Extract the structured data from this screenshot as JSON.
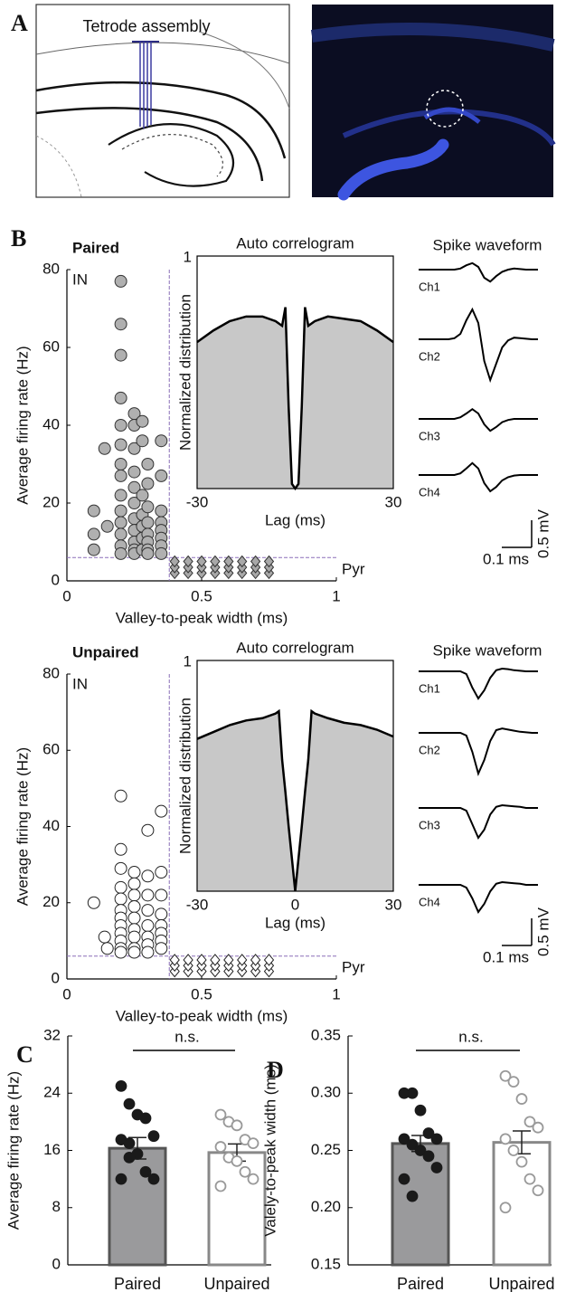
{
  "panel_a": {
    "label": "A",
    "annotation": "Tetrode assembly"
  },
  "chart_data": [
    {
      "type": "scatter",
      "panel": "B",
      "title": "Paired",
      "xlabel": "Valley-to-peak width (ms)",
      "ylabel": "Average firing rate (Hz)",
      "annotations": [
        "IN",
        "Pyr"
      ],
      "xlim": [
        0,
        1
      ],
      "xticks": [
        0,
        0.5,
        1
      ],
      "ylim": [
        0,
        80
      ],
      "yticks": [
        0,
        20,
        40,
        60,
        80
      ],
      "threshold_x": 0.38,
      "threshold_y": 6,
      "threshold_color": "#8a6fb8",
      "series": [
        {
          "marker": "circle",
          "color": "#b0b0b0",
          "edgecolor": "#333333",
          "x": [
            0.1,
            0.1,
            0.1,
            0.14,
            0.15,
            0.2,
            0.2,
            0.2,
            0.2,
            0.2,
            0.2,
            0.2,
            0.2,
            0.2,
            0.2,
            0.2,
            0.2,
            0.2,
            0.2,
            0.25,
            0.25,
            0.25,
            0.25,
            0.25,
            0.25,
            0.25,
            0.25,
            0.25,
            0.25,
            0.25,
            0.28,
            0.28,
            0.28,
            0.28,
            0.28,
            0.28,
            0.28,
            0.3,
            0.3,
            0.3,
            0.3,
            0.3,
            0.3,
            0.3,
            0.3,
            0.35,
            0.35,
            0.35,
            0.35,
            0.35,
            0.35,
            0.35,
            0.35
          ],
          "values": [
            18,
            12,
            8,
            34,
            14,
            77,
            66,
            58,
            47,
            40,
            35,
            30,
            27,
            22,
            18,
            15,
            12,
            9,
            7,
            43,
            40,
            34,
            28,
            24,
            20,
            16,
            13,
            10,
            8,
            7,
            41,
            36,
            22,
            17,
            14,
            11,
            8,
            30,
            25,
            19,
            15,
            12,
            10,
            8,
            7,
            36,
            27,
            18,
            15,
            13,
            11,
            9,
            7
          ]
        },
        {
          "marker": "diamond",
          "color": "#a8a8a8",
          "edgecolor": "#333333",
          "x": [
            0.4,
            0.4,
            0.4,
            0.45,
            0.45,
            0.45,
            0.5,
            0.5,
            0.5,
            0.55,
            0.55,
            0.55,
            0.6,
            0.6,
            0.6,
            0.65,
            0.65,
            0.65,
            0.7,
            0.7,
            0.7,
            0.75,
            0.75,
            0.75
          ],
          "values": [
            2,
            3.5,
            5,
            2,
            3.5,
            5,
            2,
            3.5,
            5,
            2,
            3.5,
            5,
            2,
            3.5,
            5,
            2,
            3.5,
            5,
            2,
            3.5,
            5,
            2,
            3.5,
            5
          ]
        }
      ]
    },
    {
      "type": "area",
      "title": "Auto correlogram",
      "xlabel": "Lag (ms)",
      "ylabel": "Normalized distribution",
      "xlim": [
        -30,
        30
      ],
      "xticks": [
        -30,
        30
      ],
      "ylim": [
        0,
        1
      ],
      "yticks": [
        1
      ],
      "color": "#c8c8c8",
      "x": [
        -30,
        -25,
        -20,
        -15,
        -10,
        -6,
        -4,
        -3,
        -2,
        -1,
        0,
        1,
        2,
        3,
        4,
        6,
        10,
        15,
        20,
        25,
        30
      ],
      "values": [
        0.63,
        0.68,
        0.72,
        0.74,
        0.74,
        0.72,
        0.7,
        0.78,
        0.35,
        0.02,
        0,
        0.02,
        0.35,
        0.78,
        0.7,
        0.72,
        0.74,
        0.73,
        0.72,
        0.68,
        0.63
      ]
    },
    {
      "type": "waveform",
      "title": "Spike waveform",
      "y_scale": {
        "value": 0.5,
        "label": "0.5 mV"
      },
      "x_scale": {
        "value": 0.1,
        "label": "0.1 ms"
      },
      "x": [
        0,
        0.02,
        0.04,
        0.06,
        0.08,
        0.1,
        0.12,
        0.14,
        0.16,
        0.18,
        0.2,
        0.22,
        0.24,
        0.26,
        0.28,
        0.3,
        0.32,
        0.34,
        0.36,
        0.38,
        0.4
      ],
      "series": [
        {
          "name": "Ch1",
          "values": [
            0,
            0,
            0,
            0,
            0,
            0,
            0,
            0.02,
            0.08,
            0.12,
            0.05,
            -0.15,
            -0.22,
            -0.12,
            -0.04,
            0,
            0.02,
            0.01,
            0,
            0,
            0
          ]
        },
        {
          "name": "Ch2",
          "values": [
            0,
            0,
            0,
            0,
            0,
            0,
            0.02,
            0.1,
            0.35,
            0.55,
            0.3,
            -0.4,
            -0.75,
            -0.45,
            -0.15,
            -0.02,
            0.03,
            0.02,
            0.01,
            0,
            0
          ]
        },
        {
          "name": "Ch3",
          "values": [
            0,
            0,
            0,
            0,
            0,
            0,
            0,
            0.03,
            0.1,
            0.18,
            0.1,
            -0.1,
            -0.22,
            -0.15,
            -0.06,
            -0.02,
            0,
            0,
            0,
            0,
            0
          ]
        },
        {
          "name": "Ch4",
          "values": [
            0,
            0,
            0,
            0,
            0,
            0,
            0,
            0.03,
            0.12,
            0.22,
            0.12,
            -0.15,
            -0.3,
            -0.22,
            -0.1,
            -0.04,
            -0.01,
            0,
            0,
            0,
            0
          ]
        }
      ]
    },
    {
      "type": "scatter",
      "title": "Unpaired",
      "xlabel": "Valley-to-peak width (ms)",
      "ylabel": "Average firing rate (Hz)",
      "annotations": [
        "IN",
        "Pyr"
      ],
      "xlim": [
        0,
        1
      ],
      "xticks": [
        0,
        0.5,
        1
      ],
      "ylim": [
        0,
        80
      ],
      "yticks": [
        0,
        20,
        40,
        60,
        80
      ],
      "threshold_x": 0.38,
      "threshold_y": 6,
      "threshold_color": "#8a6fb8",
      "series": [
        {
          "marker": "circle",
          "color": "#ffffff",
          "edgecolor": "#222222",
          "x": [
            0.1,
            0.14,
            0.15,
            0.2,
            0.2,
            0.2,
            0.2,
            0.2,
            0.2,
            0.2,
            0.2,
            0.2,
            0.2,
            0.2,
            0.2,
            0.25,
            0.25,
            0.25,
            0.25,
            0.25,
            0.25,
            0.25,
            0.25,
            0.25,
            0.3,
            0.3,
            0.3,
            0.3,
            0.3,
            0.3,
            0.3,
            0.3,
            0.35,
            0.35,
            0.35,
            0.35,
            0.35,
            0.35,
            0.35,
            0.35
          ],
          "values": [
            20,
            11,
            8,
            48,
            34,
            29,
            24,
            21,
            18,
            16,
            14,
            12,
            10,
            8,
            7,
            28,
            25,
            22,
            19,
            16,
            13,
            11,
            8,
            7,
            39,
            27,
            22,
            18,
            14,
            11,
            9,
            7,
            44,
            28,
            22,
            17,
            14,
            12,
            10,
            8
          ]
        },
        {
          "marker": "diamond",
          "color": "#ffffff",
          "edgecolor": "#222222",
          "x": [
            0.4,
            0.4,
            0.4,
            0.45,
            0.45,
            0.45,
            0.5,
            0.5,
            0.5,
            0.55,
            0.55,
            0.55,
            0.6,
            0.6,
            0.6,
            0.65,
            0.65,
            0.65,
            0.7,
            0.7,
            0.7,
            0.75,
            0.75,
            0.75
          ],
          "values": [
            2,
            3.5,
            5,
            2,
            3.5,
            5,
            2,
            3.5,
            5,
            2,
            3.5,
            5,
            2,
            3.5,
            5,
            2,
            3.5,
            5,
            2,
            3.5,
            5,
            2,
            3.5,
            5
          ]
        }
      ]
    },
    {
      "type": "area",
      "title": "Auto correlogram",
      "xlabel": "Lag (ms)",
      "ylabel": "Normalized distribution",
      "xlim": [
        -30,
        30
      ],
      "xticks": [
        -30,
        0,
        30
      ],
      "ylim": [
        0,
        1
      ],
      "yticks": [
        1
      ],
      "color": "#c8c8c8",
      "x": [
        -30,
        -25,
        -20,
        -15,
        -10,
        -6,
        -5,
        -4,
        -3,
        -2,
        -1,
        0,
        1,
        2,
        3,
        4,
        5,
        6,
        10,
        15,
        20,
        25,
        30
      ],
      "values": [
        0.66,
        0.69,
        0.72,
        0.74,
        0.75,
        0.77,
        0.78,
        0.57,
        0.43,
        0.28,
        0.14,
        0,
        0.14,
        0.28,
        0.43,
        0.57,
        0.78,
        0.77,
        0.75,
        0.73,
        0.72,
        0.7,
        0.67
      ]
    },
    {
      "type": "waveform",
      "title": "Spike waveform",
      "y_scale": {
        "value": 0.5,
        "label": "0.5 mV"
      },
      "x_scale": {
        "value": 0.1,
        "label": "0.1 ms"
      },
      "x": [
        0,
        0.02,
        0.04,
        0.06,
        0.08,
        0.1,
        0.12,
        0.14,
        0.16,
        0.18,
        0.2,
        0.22,
        0.24,
        0.26,
        0.28,
        0.3,
        0.32,
        0.34,
        0.36,
        0.38,
        0.4
      ],
      "series": [
        {
          "name": "Ch1",
          "values": [
            0,
            0,
            0,
            0,
            0,
            0,
            0,
            0,
            -0.05,
            -0.3,
            -0.5,
            -0.35,
            -0.12,
            0.02,
            0.05,
            0.04,
            0.02,
            0.01,
            0,
            0,
            0
          ]
        },
        {
          "name": "Ch2",
          "values": [
            0,
            0,
            0,
            0,
            0,
            0,
            0,
            0,
            -0.05,
            -0.35,
            -0.75,
            -0.5,
            -0.15,
            0.05,
            0.08,
            0.06,
            0.04,
            0.02,
            0.01,
            0,
            0
          ]
        },
        {
          "name": "Ch3",
          "values": [
            0,
            0,
            0,
            0,
            0,
            0,
            0,
            0,
            -0.05,
            -0.3,
            -0.55,
            -0.4,
            -0.12,
            0.02,
            0.05,
            0.04,
            0.03,
            0.02,
            0,
            0,
            0
          ]
        },
        {
          "name": "Ch4",
          "values": [
            0,
            0,
            0,
            0,
            0,
            0,
            0,
            0,
            -0.05,
            -0.25,
            -0.5,
            -0.35,
            -0.12,
            0.02,
            0.05,
            0.04,
            0.03,
            0.02,
            0,
            0,
            0
          ]
        }
      ]
    },
    {
      "type": "bar",
      "panel": "C",
      "ylabel": "Average firing rate (Hz)",
      "annotation": "n.s.",
      "categories": [
        "Paired",
        "Unpaired"
      ],
      "values": [
        16.3,
        15.7
      ],
      "errors": [
        1.5,
        1.2
      ],
      "colors": [
        "#9a9a9c",
        "#ffffff"
      ],
      "edge_colors": [
        "#555555",
        "#888888"
      ],
      "point_fill": [
        "#1a1a1a",
        "#ffffff"
      ],
      "point_colors": [
        "#1a1a1a",
        "#999999"
      ],
      "points": [
        [
          25,
          22.5,
          21,
          20.5,
          18,
          17.5,
          17,
          15.5,
          13,
          12,
          12,
          15
        ],
        [
          21,
          20,
          19.5,
          17.5,
          17,
          16.5,
          15,
          14.5,
          13,
          12,
          11
        ]
      ],
      "ylim": [
        0,
        32
      ],
      "yticks": [
        0,
        8,
        16,
        24,
        32
      ]
    },
    {
      "type": "bar",
      "panel": "D",
      "ylabel": "Valely-to-peak width (ms)",
      "annotation": "n.s.",
      "categories": [
        "Paired",
        "Unpaired"
      ],
      "values": [
        0.256,
        0.257
      ],
      "errors": [
        0.007,
        0.01
      ],
      "colors": [
        "#9a9a9c",
        "#ffffff"
      ],
      "edge_colors": [
        "#555555",
        "#888888"
      ],
      "point_fill": [
        "#1a1a1a",
        "#ffffff"
      ],
      "point_colors": [
        "#1a1a1a",
        "#999999"
      ],
      "points": [
        [
          0.3,
          0.3,
          0.285,
          0.265,
          0.26,
          0.26,
          0.255,
          0.25,
          0.245,
          0.235,
          0.225,
          0.21
        ],
        [
          0.315,
          0.31,
          0.295,
          0.275,
          0.27,
          0.26,
          0.25,
          0.24,
          0.225,
          0.215,
          0.2
        ]
      ],
      "ylim": [
        0.15,
        0.35
      ],
      "yticks": [
        0.15,
        {
          "value": 0.2,
          "label": "0.20"
        },
        0.25,
        {
          "value": 0.3,
          "label": "0.30"
        },
        0.35
      ]
    }
  ]
}
